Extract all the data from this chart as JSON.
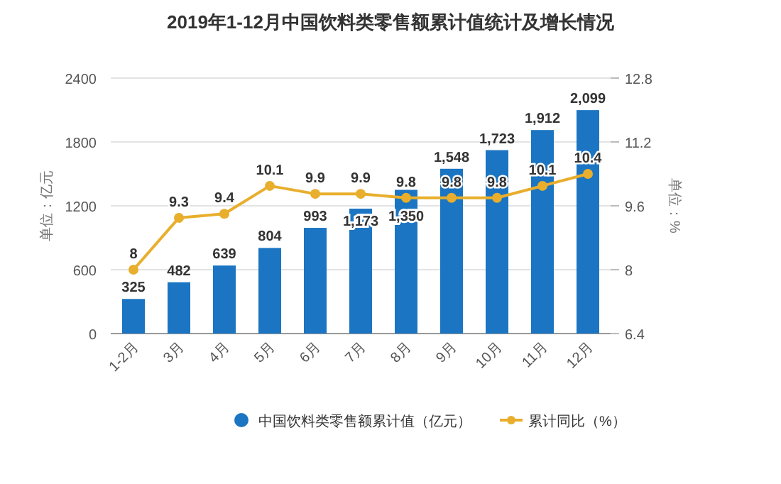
{
  "chart_data": {
    "type": "bar",
    "title": "2019年1-12月中国饮料类零售额累计值统计及增长情况",
    "ylabel": "单位：亿元",
    "y2label": "单位：%",
    "categories": [
      "1-2月",
      "3月",
      "4月",
      "5月",
      "6月",
      "7月",
      "8月",
      "9月",
      "10月",
      "11月",
      "12月"
    ],
    "series": [
      {
        "name": "中国饮料类零售额累计值（亿元）",
        "color": "#1b75c2",
        "values": [
          325,
          482,
          639,
          804,
          993,
          1173,
          1350,
          1548,
          1723,
          1912,
          2099
        ],
        "value_labels": [
          "325",
          "482",
          "639",
          "804",
          "993",
          "1,173",
          "1,350",
          "1,548",
          "1,723",
          "1,912",
          "2,099"
        ]
      },
      {
        "name": "累计同比（%）",
        "type": "line",
        "axis": "y2",
        "color": "#e8ae2c",
        "marker": "circle",
        "values": [
          8,
          9.3,
          9.4,
          10.1,
          9.9,
          9.9,
          9.8,
          9.8,
          9.8,
          10.1,
          10.4
        ],
        "value_labels": [
          "8",
          "9.3",
          "9.4",
          "10.1",
          "9.9",
          "9.9",
          "9.8",
          "9.8",
          "9.8",
          "10.1",
          "10.4"
        ]
      }
    ],
    "ylim": [
      0,
      2400
    ],
    "yticks": [
      0,
      600,
      1200,
      1800,
      2400
    ],
    "y2lim": [
      6.4,
      12.8
    ],
    "y2ticks": [
      6.4,
      8,
      9.6,
      11.2,
      12.8
    ],
    "grid": "y",
    "legend": "bottom"
  }
}
